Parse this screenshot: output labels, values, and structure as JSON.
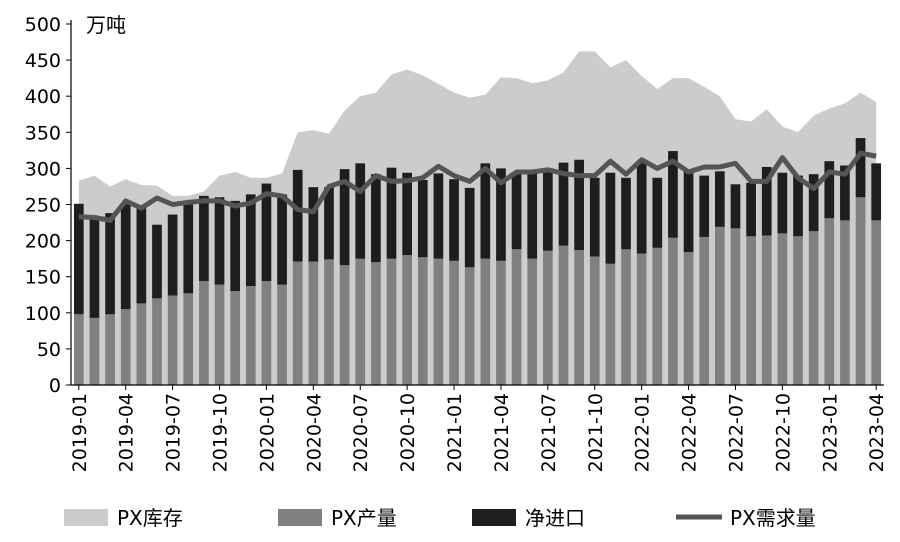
{
  "chart_data": {
    "type": "bar",
    "unit_label": "万吨",
    "ylim": [
      0,
      500
    ],
    "y_ticks": [
      0,
      50,
      100,
      150,
      200,
      250,
      300,
      350,
      400,
      450,
      500
    ],
    "x": [
      "2019-01",
      "2019-02",
      "2019-03",
      "2019-04",
      "2019-05",
      "2019-06",
      "2019-07",
      "2019-08",
      "2019-09",
      "2019-10",
      "2019-11",
      "2019-12",
      "2020-01",
      "2020-02",
      "2020-03",
      "2020-04",
      "2020-05",
      "2020-06",
      "2020-07",
      "2020-08",
      "2020-09",
      "2020-10",
      "2020-11",
      "2020-12",
      "2021-01",
      "2021-02",
      "2021-03",
      "2021-04",
      "2021-05",
      "2021-06",
      "2021-07",
      "2021-08",
      "2021-09",
      "2021-10",
      "2021-11",
      "2021-12",
      "2022-01",
      "2022-02",
      "2022-03",
      "2022-04",
      "2022-05",
      "2022-06",
      "2022-07",
      "2022-08",
      "2022-09",
      "2022-10",
      "2022-11",
      "2022-12",
      "2023-01",
      "2023-02",
      "2023-03",
      "2023-04"
    ],
    "x_tick_labels": [
      "2019-01",
      "2019-04",
      "2019-07",
      "2019-10",
      "2020-01",
      "2020-04",
      "2020-07",
      "2020-10",
      "2021-01",
      "2021-04",
      "2021-07",
      "2021-10",
      "2022-01",
      "2022-04",
      "2022-07",
      "2022-10",
      "2023-01",
      "2023-04"
    ],
    "grid": false,
    "legend_position": "bottom",
    "series": [
      {
        "name": "PX库存",
        "type": "area",
        "color": "#cccccc",
        "values": [
          283,
          290,
          275,
          285,
          277,
          276,
          262,
          262,
          268,
          290,
          295,
          287,
          287,
          293,
          350,
          353,
          348,
          380,
          400,
          405,
          430,
          437,
          429,
          417,
          405,
          398,
          402,
          426,
          425,
          418,
          422,
          433,
          462,
          462,
          440,
          450,
          428,
          410,
          425,
          425,
          413,
          400,
          368,
          365,
          382,
          358,
          350,
          373,
          383,
          390,
          405,
          392
        ]
      },
      {
        "name": "PX产量",
        "type": "bar",
        "color": "#808080",
        "values": [
          98,
          93,
          98,
          105,
          113,
          120,
          124,
          127,
          144,
          139,
          130,
          137,
          144,
          139,
          171,
          171,
          174,
          166,
          175,
          170,
          175,
          180,
          177,
          175,
          172,
          163,
          175,
          172,
          188,
          175,
          186,
          193,
          187,
          178,
          168,
          188,
          182,
          190,
          204,
          184,
          205,
          219,
          217,
          206,
          207,
          210,
          206,
          213,
          231,
          228,
          260,
          228
        ]
      },
      {
        "name": "净进口",
        "type": "bar_stacked",
        "color": "#1e1e1e",
        "values": [
          153,
          140,
          140,
          145,
          132,
          102,
          112,
          123,
          118,
          121,
          125,
          127,
          135,
          125,
          127,
          103,
          100,
          133,
          132,
          122,
          126,
          114,
          107,
          118,
          113,
          110,
          132,
          128,
          107,
          120,
          114,
          115,
          125,
          109,
          126,
          99,
          127,
          97,
          120,
          113,
          85,
          77,
          61,
          74,
          95,
          84,
          84,
          79,
          79,
          76,
          82,
          79
        ]
      },
      {
        "name": "PX需求量",
        "type": "line",
        "color": "#555555",
        "values": [
          233,
          232,
          228,
          255,
          245,
          259,
          250,
          253,
          255,
          255,
          248,
          252,
          265,
          262,
          243,
          240,
          275,
          282,
          268,
          290,
          282,
          283,
          287,
          303,
          290,
          282,
          300,
          280,
          295,
          295,
          298,
          293,
          290,
          290,
          310,
          292,
          312,
          300,
          310,
          295,
          302,
          302,
          307,
          282,
          282,
          315,
          287,
          272,
          295,
          292,
          321,
          317
        ]
      }
    ]
  }
}
